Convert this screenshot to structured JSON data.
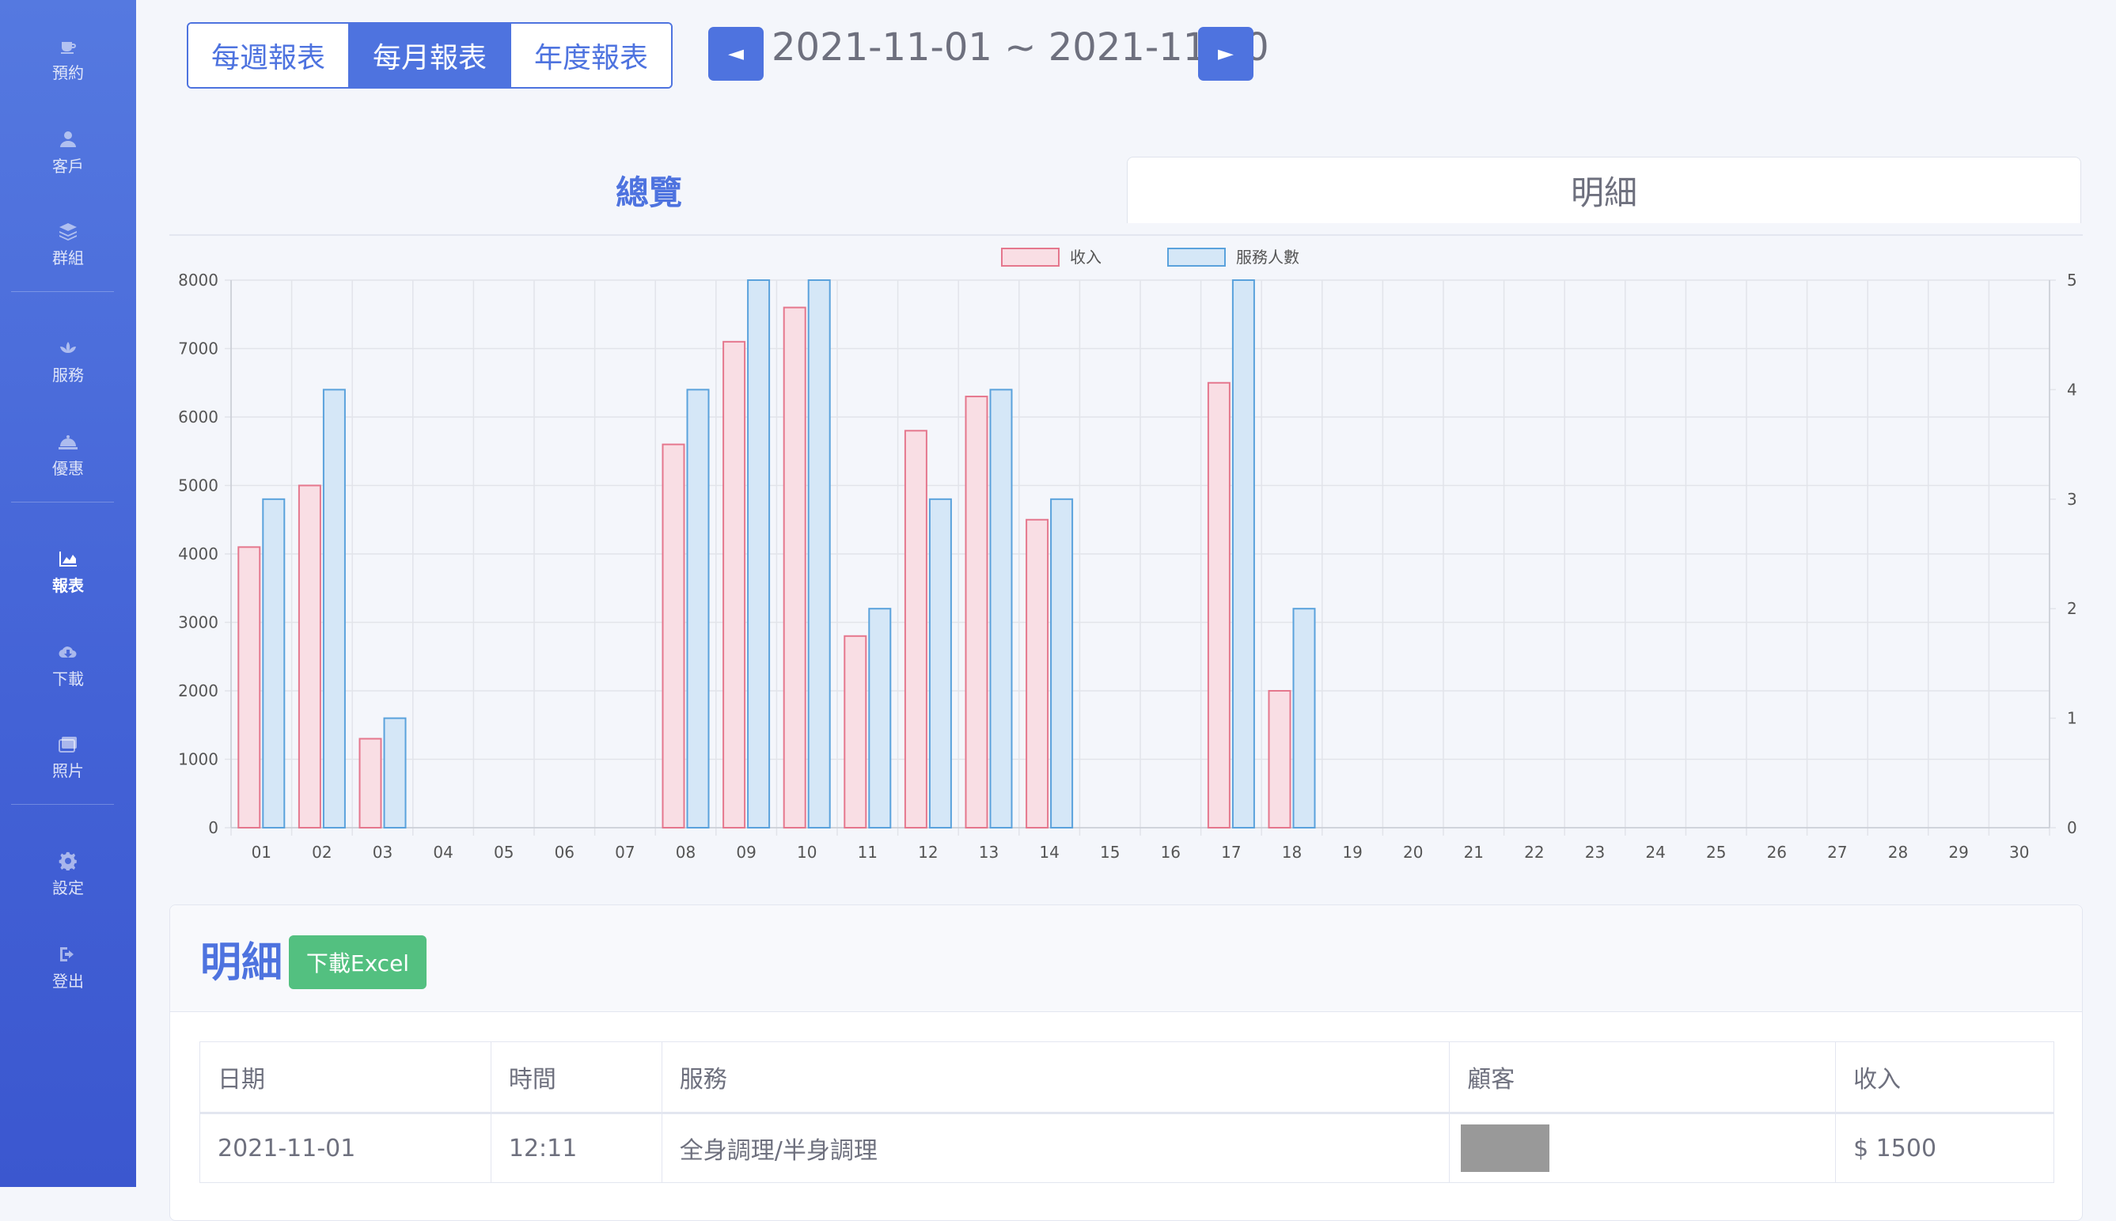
{
  "sidebar": {
    "items": [
      {
        "label": "預約",
        "icon": "coffee-icon"
      },
      {
        "label": "客戶",
        "icon": "user-icon"
      },
      {
        "label": "群組",
        "icon": "layers-icon"
      },
      {
        "label": "服務",
        "icon": "lotus-icon"
      },
      {
        "label": "優惠",
        "icon": "cloche-icon"
      },
      {
        "label": "報表",
        "icon": "chart-area-icon"
      },
      {
        "label": "下載",
        "icon": "cloud-download-icon"
      },
      {
        "label": "照片",
        "icon": "images-icon"
      },
      {
        "label": "設定",
        "icon": "gear-icon"
      },
      {
        "label": "登出",
        "icon": "sign-out-icon"
      }
    ],
    "active": "報表"
  },
  "period": {
    "weekly": "每週報表",
    "monthly": "每月報表",
    "yearly": "年度報表",
    "active": "每月報表"
  },
  "date_range": "2021-11-01 ~ 2021-11-30",
  "nav": {
    "prev": "◄",
    "next": "►"
  },
  "tabs": {
    "overview": "總覽",
    "detail": "明細"
  },
  "chart_data": {
    "type": "bar",
    "legend": [
      "收入",
      "服務人數"
    ],
    "legend_position": "top",
    "categories": [
      "01",
      "02",
      "03",
      "04",
      "05",
      "06",
      "07",
      "08",
      "09",
      "10",
      "11",
      "12",
      "13",
      "14",
      "15",
      "16",
      "17",
      "18",
      "19",
      "20",
      "21",
      "22",
      "23",
      "24",
      "25",
      "26",
      "27",
      "28",
      "29",
      "30"
    ],
    "series": [
      {
        "name": "收入",
        "axis": "left",
        "color": "#e5778d",
        "fill": "#f9dee4",
        "values": [
          4100,
          5000,
          1300,
          0,
          0,
          0,
          0,
          5600,
          7100,
          7600,
          2800,
          5800,
          6300,
          4500,
          0,
          0,
          6500,
          2000,
          0,
          0,
          0,
          0,
          0,
          0,
          0,
          0,
          0,
          0,
          0,
          0
        ]
      },
      {
        "name": "服務人數",
        "axis": "right",
        "color": "#5aa2dc",
        "fill": "#d5e7f7",
        "values": [
          3,
          4,
          1,
          0,
          0,
          0,
          0,
          4,
          5,
          5,
          2,
          3,
          4,
          3,
          0,
          0,
          5,
          2,
          0,
          0,
          0,
          0,
          0,
          0,
          0,
          0,
          0,
          0,
          0,
          0
        ]
      }
    ],
    "y_left": {
      "min": 0,
      "max": 8000,
      "ticks": [
        0,
        1000,
        2000,
        3000,
        4000,
        5000,
        6000,
        7000,
        8000
      ]
    },
    "y_right": {
      "min": 0,
      "max": 5,
      "ticks": [
        0,
        1,
        2,
        3,
        4,
        5
      ]
    },
    "grid": true
  },
  "detail": {
    "title": "明細",
    "excel_button": "下載Excel",
    "columns": [
      "日期",
      "時間",
      "服務",
      "顧客",
      "收入"
    ],
    "rows": [
      {
        "date": "2021-11-01",
        "time": "12:11",
        "service": "全身調理/半身調理",
        "customer": "",
        "income": "$ 1500"
      }
    ]
  }
}
